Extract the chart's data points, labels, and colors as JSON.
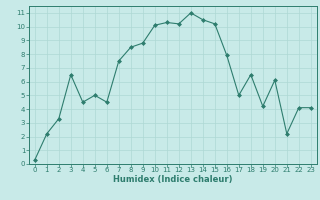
{
  "x": [
    0,
    1,
    2,
    3,
    4,
    5,
    6,
    7,
    8,
    9,
    10,
    11,
    12,
    13,
    14,
    15,
    16,
    17,
    18,
    19,
    20,
    21,
    22,
    23
  ],
  "y": [
    0.3,
    2.2,
    3.3,
    6.5,
    4.5,
    5.0,
    4.5,
    7.5,
    8.5,
    8.8,
    10.1,
    10.3,
    10.2,
    11.0,
    10.5,
    10.2,
    7.9,
    5.0,
    6.5,
    4.2,
    6.1,
    2.2,
    4.1,
    4.1
  ],
  "xlabel": "Humidex (Indice chaleur)",
  "xlim": [
    -0.5,
    23.5
  ],
  "ylim": [
    0,
    11.5
  ],
  "xticks": [
    0,
    1,
    2,
    3,
    4,
    5,
    6,
    7,
    8,
    9,
    10,
    11,
    12,
    13,
    14,
    15,
    16,
    17,
    18,
    19,
    20,
    21,
    22,
    23
  ],
  "yticks": [
    0,
    1,
    2,
    3,
    4,
    5,
    6,
    7,
    8,
    9,
    10,
    11
  ],
  "line_color": "#2e7d6e",
  "marker": "D",
  "marker_size": 2,
  "background_color": "#c8eae8",
  "grid_color": "#aed8d4",
  "font_color": "#2e7d6e",
  "xlabel_fontsize": 6.0,
  "tick_fontsize": 5.0
}
